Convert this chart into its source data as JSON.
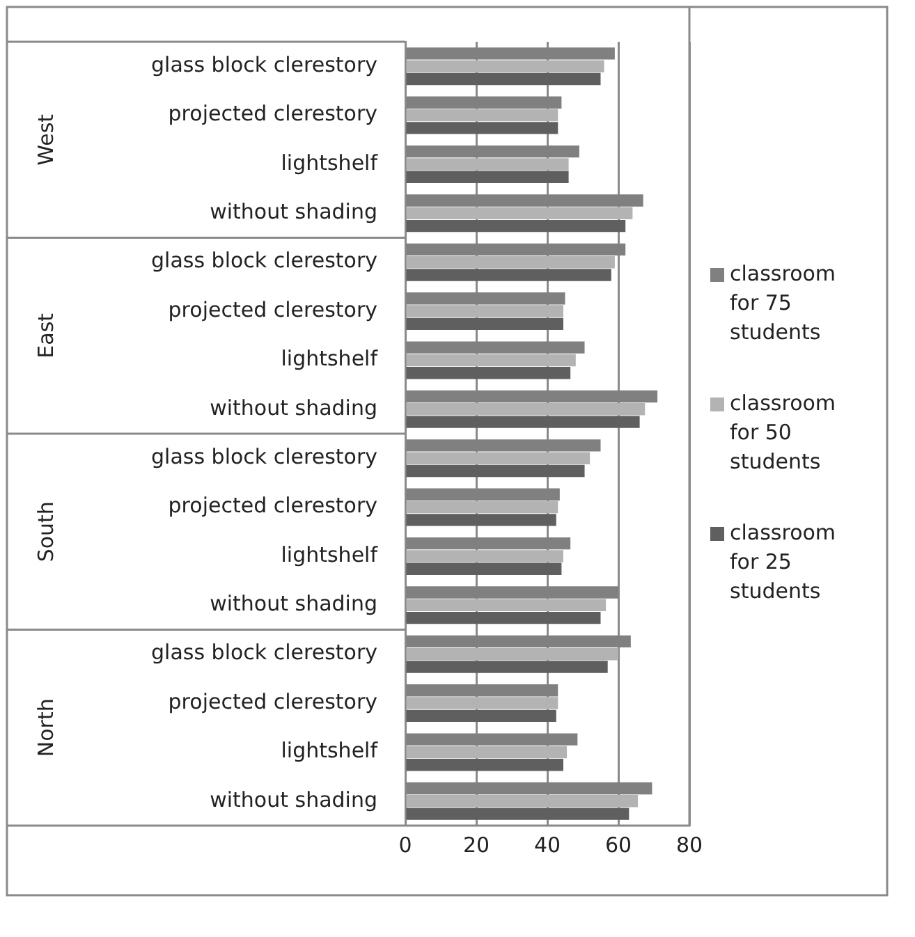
{
  "chart_data": {
    "type": "bar",
    "orientation": "horizontal",
    "categories": [
      "glass block clerestory",
      "projected clerestory",
      "lightshelf",
      "without shading",
      "glass block clerestory",
      "projected clerestory",
      "lightshelf",
      "without shading",
      "glass block clerestory",
      "projected clerestory",
      "lightshelf",
      "without shading",
      "glass block clerestory",
      "projected clerestory",
      "lightshelf",
      "without shading"
    ],
    "series": [
      {
        "name": "classroom for 75 students",
        "color": "#808080",
        "values": [
          59,
          44,
          49,
          67,
          62,
          45,
          50.5,
          71,
          55,
          43.5,
          46.5,
          60,
          63.5,
          43,
          48.5,
          69.5
        ]
      },
      {
        "name": "classroom for 50 students",
        "color": "#b3b3b3",
        "values": [
          56,
          43,
          46,
          64,
          59,
          44.5,
          48,
          67.5,
          52,
          43,
          44.5,
          56.5,
          60,
          43,
          45.5,
          65.5
        ]
      },
      {
        "name": "classroom for 25 students",
        "color": "#5f5f5f",
        "values": [
          55,
          43,
          46,
          62,
          58,
          44.5,
          46.5,
          66,
          50.5,
          42.5,
          44,
          55,
          57,
          42.5,
          44.5,
          63
        ]
      }
    ],
    "annotations": [
      "West",
      "East",
      "South",
      "North"
    ],
    "xlim": [
      0,
      80
    ],
    "xticks": [
      0,
      20,
      40,
      60,
      80
    ],
    "grid": "x",
    "legend": "right"
  }
}
